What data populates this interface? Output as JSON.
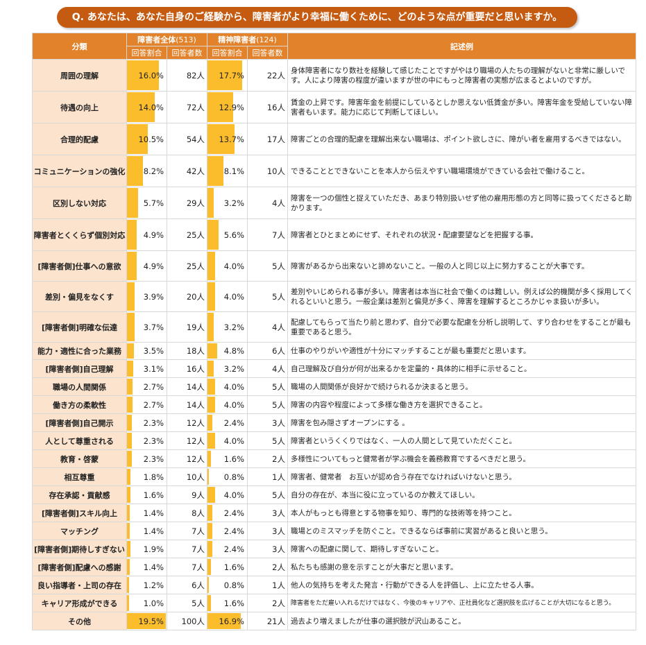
{
  "question": "Q.  あなたは、あなた自身のご経験から、障害者がより幸福に働くために、どのような点が重要だと思いますか。",
  "headers": {
    "category": "分類",
    "all_group": "障害者全体",
    "all_n": "(513)",
    "mental_group": "精神障害者",
    "mental_n": "(124)",
    "ratio": "回答割合",
    "count": "回答者数",
    "comment": "記述例"
  },
  "rows": [
    {
      "category": "周囲の理解",
      "all_pct": "16.0%",
      "all_v": 16.0,
      "all_cnt": "82人",
      "m_pct": "17.7%",
      "m_v": 17.7,
      "m_cnt": "22人",
      "comment": "身体障害者になり数社を経験して感じたことですがやはり職場の人たちの理解がないと非常に厳しいです。人により障害の程度が違いますが世の中にもっと障害者の実態が広まるとよいのですが。"
    },
    {
      "category": "待遇の向上",
      "all_pct": "14.0%",
      "all_v": 14.0,
      "all_cnt": "72人",
      "m_pct": "12.9%",
      "m_v": 12.9,
      "m_cnt": "16人",
      "comment": "賃金の上昇です。障害年金を前提にしているとしか思えない低賃金が多い。障害年金を受給していない障害者もいます。能力に応じて判断してほしい。"
    },
    {
      "category": "合理的配慮",
      "all_pct": "10.5%",
      "all_v": 10.5,
      "all_cnt": "54人",
      "m_pct": "13.7%",
      "m_v": 13.7,
      "m_cnt": "17人",
      "comment": "障害ごとの合理的配慮を理解出来ない職場は、ポイント欲しさに、障がい者を雇用するべきではない。"
    },
    {
      "category": "コミュニケーションの強化",
      "all_pct": "8.2%",
      "all_v": 8.2,
      "all_cnt": "42人",
      "m_pct": "8.1%",
      "m_v": 8.1,
      "m_cnt": "10人",
      "comment": "できることとできないことを本人から伝えやすい職場環境ができている会社で働けること。"
    },
    {
      "category": "区別しない対応",
      "all_pct": "5.7%",
      "all_v": 5.7,
      "all_cnt": "29人",
      "m_pct": "3.2%",
      "m_v": 3.2,
      "m_cnt": "4人",
      "comment": "障害を一つの個性と捉えていただき、あまり特別扱いせず他の雇用形態の方と同等に扱ってくださると助かります。"
    },
    {
      "category": "障害者とくくらず個別対応",
      "all_pct": "4.9%",
      "all_v": 4.9,
      "all_cnt": "25人",
      "m_pct": "5.6%",
      "m_v": 5.6,
      "m_cnt": "7人",
      "comment": "障害者とひとまとめにせず、それぞれの状況・配慮要望などを把握する事。"
    },
    {
      "category": "[障害者側]仕事への意欲",
      "all_pct": "4.9%",
      "all_v": 4.9,
      "all_cnt": "25人",
      "m_pct": "4.0%",
      "m_v": 4.0,
      "m_cnt": "5人",
      "comment": "障害があるから出来ないと諦めないこと。一般の人と同じ以上に努力することが大事です。"
    },
    {
      "category": "差別・偏見をなくす",
      "all_pct": "3.9%",
      "all_v": 3.9,
      "all_cnt": "20人",
      "m_pct": "4.0%",
      "m_v": 4.0,
      "m_cnt": "5人",
      "comment": "差別やいじめられる事が多い。障害者は本当に社会で働くのは難しい。例えば公的機関が多く採用してくれるといいと思う。一般企業は差別と偏見が多く、障害を理解するところかじゃま扱いが多い。"
    },
    {
      "category": "[障害者側]明確な伝達",
      "all_pct": "3.7%",
      "all_v": 3.7,
      "all_cnt": "19人",
      "m_pct": "3.2%",
      "m_v": 3.2,
      "m_cnt": "4人",
      "comment": "配慮してもらって当たり前と思わず、自分で必要な配慮を分析し説明して、すり合わせをすることが最も重要であると思う。"
    },
    {
      "category": "能力・適性に合った業務",
      "all_pct": "3.5%",
      "all_v": 3.5,
      "all_cnt": "18人",
      "m_pct": "4.8%",
      "m_v": 4.8,
      "m_cnt": "6人",
      "comment": "仕事のやりがいや適性が十分にマッチすることが最も重要だと思います。"
    },
    {
      "category": "[障害者側]自己理解",
      "all_pct": "3.1%",
      "all_v": 3.1,
      "all_cnt": "16人",
      "m_pct": "3.2%",
      "m_v": 3.2,
      "m_cnt": "4人",
      "comment": "自己理解及び自分が何が出来るかを定量的・具体的に相手に示せること。"
    },
    {
      "category": "職場の人間関係",
      "all_pct": "2.7%",
      "all_v": 2.7,
      "all_cnt": "14人",
      "m_pct": "4.0%",
      "m_v": 4.0,
      "m_cnt": "5人",
      "comment": "職場の人間関係が良好かで続けられるか決まると思う。"
    },
    {
      "category": "働き方の柔軟性",
      "all_pct": "2.7%",
      "all_v": 2.7,
      "all_cnt": "14人",
      "m_pct": "4.0%",
      "m_v": 4.0,
      "m_cnt": "5人",
      "comment": "障害の内容や程度によって多様な働き方を選択できること。"
    },
    {
      "category": "[障害者側]自己開示",
      "all_pct": "2.3%",
      "all_v": 2.3,
      "all_cnt": "12人",
      "m_pct": "2.4%",
      "m_v": 2.4,
      "m_cnt": "3人",
      "comment": "障害を包み隠さずオープンにする 。"
    },
    {
      "category": "人として尊重される",
      "all_pct": "2.3%",
      "all_v": 2.3,
      "all_cnt": "12人",
      "m_pct": "4.0%",
      "m_v": 4.0,
      "m_cnt": "5人",
      "comment": "障害者というくくりではなく、一人の人間として見ていただくこと。"
    },
    {
      "category": "教育・啓蒙",
      "all_pct": "2.3%",
      "all_v": 2.3,
      "all_cnt": "12人",
      "m_pct": "1.6%",
      "m_v": 1.6,
      "m_cnt": "2人",
      "comment": "多様性についてもっと健常者が学ぶ機会を義務教育でするべきだと思う。"
    },
    {
      "category": "相互尊重",
      "all_pct": "1.8%",
      "all_v": 1.8,
      "all_cnt": "10人",
      "m_pct": "0.8%",
      "m_v": 0.8,
      "m_cnt": "1人",
      "comment": "障害者、健常者　お互いが認め合う存在でなければいけないと思う。"
    },
    {
      "category": "存在承認・貢献感",
      "all_pct": "1.6%",
      "all_v": 1.6,
      "all_cnt": "9人",
      "m_pct": "4.0%",
      "m_v": 4.0,
      "m_cnt": "5人",
      "comment": "自分の存在が、本当に役に立っているのか教えてほしい。"
    },
    {
      "category": "[障害者側]スキル向上",
      "all_pct": "1.4%",
      "all_v": 1.4,
      "all_cnt": "8人",
      "m_pct": "2.4%",
      "m_v": 2.4,
      "m_cnt": "3人",
      "comment": "本人がもっとも得意とする物事を知り、専門的な技術等を持つこと。"
    },
    {
      "category": "マッチング",
      "all_pct": "1.4%",
      "all_v": 1.4,
      "all_cnt": "7人",
      "m_pct": "2.4%",
      "m_v": 2.4,
      "m_cnt": "3人",
      "comment": "職場とのミスマッチを防ぐこと。できるならば事前に実習があると良いと思う。"
    },
    {
      "category": "[障害者側]期待しすぎない",
      "all_pct": "1.9%",
      "all_v": 1.9,
      "all_cnt": "7人",
      "m_pct": "2.4%",
      "m_v": 2.4,
      "m_cnt": "3人",
      "comment": "障害への配慮に関して、期待しすぎないこと。"
    },
    {
      "category": "[障害者側]配慮への感謝",
      "all_pct": "1.4%",
      "all_v": 1.4,
      "all_cnt": "7人",
      "m_pct": "1.6%",
      "m_v": 1.6,
      "m_cnt": "2人",
      "comment": "私たちも感謝の意を示すことが大事だと思います。"
    },
    {
      "category": "良い指導者・上司の存在",
      "all_pct": "1.2%",
      "all_v": 1.2,
      "all_cnt": "6人",
      "m_pct": "0.8%",
      "m_v": 0.8,
      "m_cnt": "1人",
      "comment": "他人の気持ちを考えた発言・行動ができる人を評価し、上に立たせる人事。"
    },
    {
      "category": "キャリア形成ができる",
      "all_pct": "1.0%",
      "all_v": 1.0,
      "all_cnt": "5人",
      "m_pct": "1.6%",
      "m_v": 1.6,
      "m_cnt": "2人",
      "comment": "障害者をただ雇い入れるだけではなく、今後のキャリアや、正社員化など選択肢を広げることが大切になると思う。",
      "small": true
    },
    {
      "category": "その他",
      "all_pct": "19.5%",
      "all_v": 19.5,
      "all_cnt": "100人",
      "m_pct": "16.9%",
      "m_v": 16.9,
      "m_cnt": "21人",
      "comment": "過去より増えましたが仕事の選択肢が沢山あること。"
    }
  ],
  "colors": {
    "header": "#e2822b",
    "category_bg": "#fbe3cd",
    "bar": "#fbbd2b",
    "banner": "#c55a11"
  }
}
